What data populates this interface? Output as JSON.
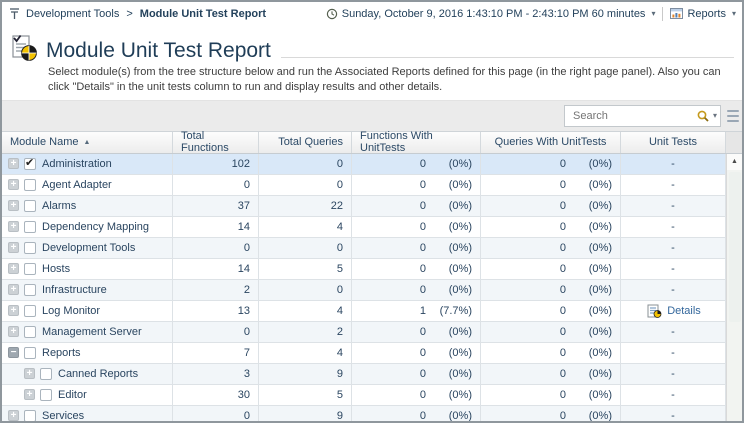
{
  "topbar": {
    "breadcrumb": {
      "parent": "Development Tools",
      "separator": ">",
      "current": "Module Unit Test Report"
    },
    "time_range_label": "Sunday, October 9, 2016 1:43:10 PM - 2:43:10 PM 60 minutes",
    "reports_button_label": "Reports",
    "dropdown_caret": "▾"
  },
  "header": {
    "title": "Module Unit Test Report",
    "description": "Select module(s) from the tree structure below and run the Associated Reports defined for this page (in the right page panel). Also you can click \"Details\" in the unit tests column to run and display results and other details."
  },
  "search": {
    "placeholder": "Search",
    "caret": "▾"
  },
  "table": {
    "columns": {
      "module_name": "Module Name",
      "total_functions": "Total Functions",
      "total_queries": "Total Queries",
      "functions_with_unittests": "Functions With UnitTests",
      "queries_with_unittests": "Queries With UnitTests",
      "unit_tests": "Unit Tests"
    },
    "sort": {
      "column": "Module Name",
      "direction": "asc",
      "arrow": "▲"
    },
    "rows": [
      {
        "module": "Administration",
        "level": 0,
        "expander": "plus",
        "checked": true,
        "selected": true,
        "total_functions": "102",
        "total_queries": "0",
        "fwu_count": "0",
        "fwu_pct": "(0%)",
        "qwu_count": "0",
        "qwu_pct": "(0%)",
        "unit_tests": "-"
      },
      {
        "module": "Agent Adapter",
        "level": 0,
        "expander": "plus",
        "checked": false,
        "total_functions": "0",
        "total_queries": "0",
        "fwu_count": "0",
        "fwu_pct": "(0%)",
        "qwu_count": "0",
        "qwu_pct": "(0%)",
        "unit_tests": "-"
      },
      {
        "module": "Alarms",
        "level": 0,
        "expander": "plus",
        "checked": false,
        "total_functions": "37",
        "total_queries": "22",
        "fwu_count": "0",
        "fwu_pct": "(0%)",
        "qwu_count": "0",
        "qwu_pct": "(0%)",
        "unit_tests": "-"
      },
      {
        "module": "Dependency Mapping",
        "level": 0,
        "expander": "plus",
        "checked": false,
        "total_functions": "14",
        "total_queries": "4",
        "fwu_count": "0",
        "fwu_pct": "(0%)",
        "qwu_count": "0",
        "qwu_pct": "(0%)",
        "unit_tests": "-"
      },
      {
        "module": "Development Tools",
        "level": 0,
        "expander": "plus",
        "checked": false,
        "total_functions": "0",
        "total_queries": "0",
        "fwu_count": "0",
        "fwu_pct": "(0%)",
        "qwu_count": "0",
        "qwu_pct": "(0%)",
        "unit_tests": "-"
      },
      {
        "module": "Hosts",
        "level": 0,
        "expander": "plus",
        "checked": false,
        "total_functions": "14",
        "total_queries": "5",
        "fwu_count": "0",
        "fwu_pct": "(0%)",
        "qwu_count": "0",
        "qwu_pct": "(0%)",
        "unit_tests": "-"
      },
      {
        "module": "Infrastructure",
        "level": 0,
        "expander": "plus",
        "checked": false,
        "total_functions": "2",
        "total_queries": "0",
        "fwu_count": "0",
        "fwu_pct": "(0%)",
        "qwu_count": "0",
        "qwu_pct": "(0%)",
        "unit_tests": "-"
      },
      {
        "module": "Log Monitor",
        "level": 0,
        "expander": "plus",
        "checked": false,
        "total_functions": "13",
        "total_queries": "4",
        "fwu_count": "1",
        "fwu_pct": "(7.7%)",
        "qwu_count": "0",
        "qwu_pct": "(0%)",
        "unit_tests": "Details",
        "unit_tests_link": true
      },
      {
        "module": "Management Server",
        "level": 0,
        "expander": "plus",
        "checked": false,
        "total_functions": "0",
        "total_queries": "2",
        "fwu_count": "0",
        "fwu_pct": "(0%)",
        "qwu_count": "0",
        "qwu_pct": "(0%)",
        "unit_tests": "-"
      },
      {
        "module": "Reports",
        "level": 0,
        "expander": "minus",
        "checked": false,
        "total_functions": "7",
        "total_queries": "4",
        "fwu_count": "0",
        "fwu_pct": "(0%)",
        "qwu_count": "0",
        "qwu_pct": "(0%)",
        "unit_tests": "-"
      },
      {
        "module": "Canned Reports",
        "level": 1,
        "expander": "plus",
        "checked": false,
        "total_functions": "3",
        "total_queries": "9",
        "fwu_count": "0",
        "fwu_pct": "(0%)",
        "qwu_count": "0",
        "qwu_pct": "(0%)",
        "unit_tests": "-"
      },
      {
        "module": "Editor",
        "level": 1,
        "expander": "plus",
        "checked": false,
        "total_functions": "30",
        "total_queries": "5",
        "fwu_count": "0",
        "fwu_pct": "(0%)",
        "qwu_count": "0",
        "qwu_pct": "(0%)",
        "unit_tests": "-"
      },
      {
        "module": "Services",
        "level": 0,
        "expander": "plus",
        "checked": false,
        "total_functions": "0",
        "total_queries": "9",
        "fwu_count": "0",
        "fwu_pct": "(0%)",
        "qwu_count": "0",
        "qwu_pct": "(0%)",
        "unit_tests": "-"
      }
    ]
  },
  "colors": {
    "selected_row": "#d9e8f8",
    "alt_row": "#f2f6f9",
    "link": "#33679c",
    "pie_yellow": "#f3c200",
    "pie_black": "#1a1a1a",
    "accent_text": "#24425c"
  }
}
